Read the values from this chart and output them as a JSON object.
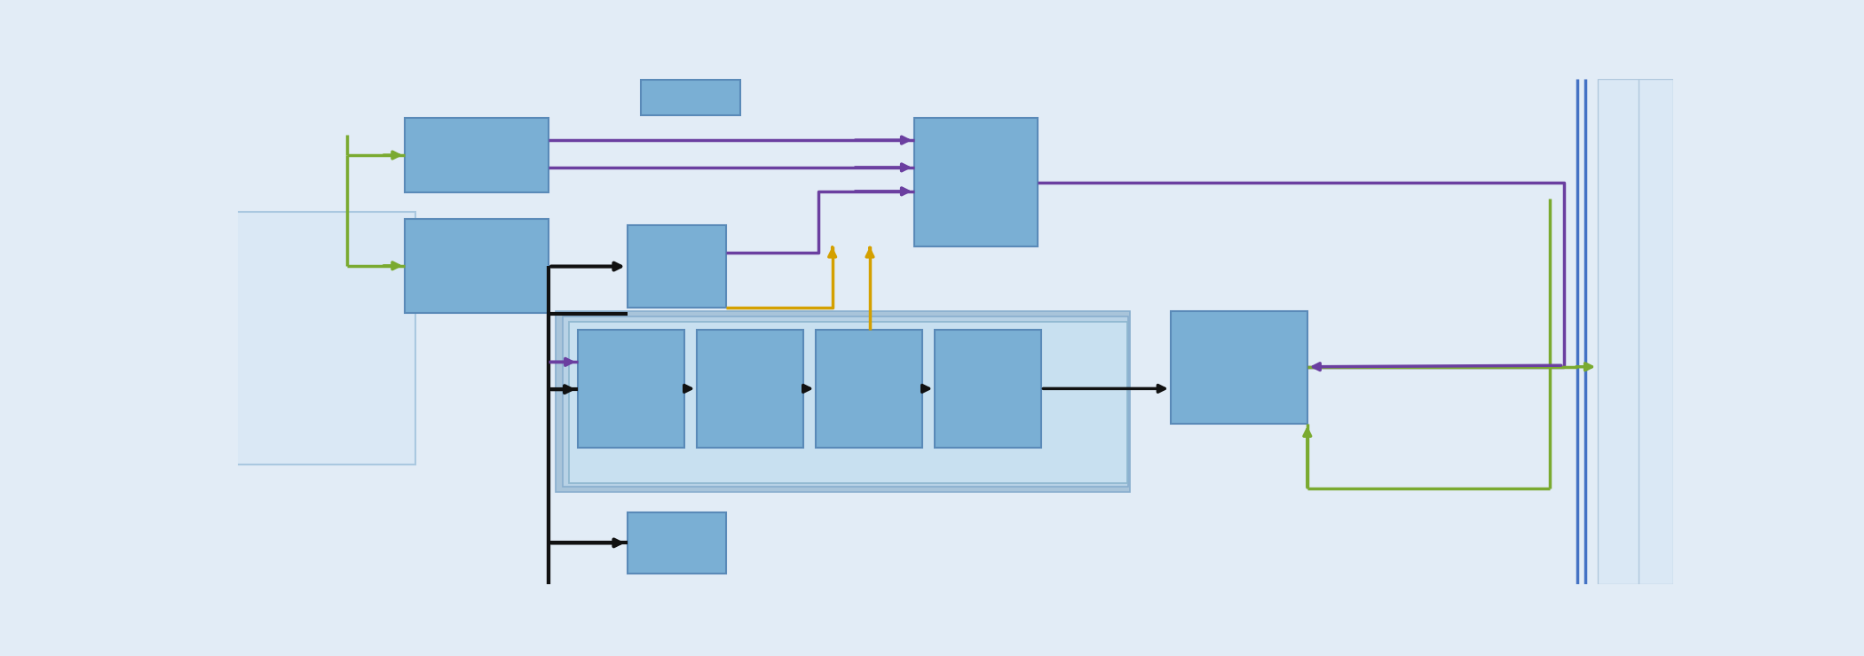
{
  "bg": "#e2ecf6",
  "box_blue": "#7aafd4",
  "box_edge": "#5a8ab8",
  "container_outer": "#b0ccdf",
  "container_mid": "#bdd8ec",
  "container_inner": "#c8e0f0",
  "panel_left": "#dae8f5",
  "panel_left_edge": "#aac8e0",
  "c_purple": "#6b3fa0",
  "c_gold": "#d4a000",
  "c_green": "#7aaa30",
  "c_black": "#111111",
  "c_blue_line": "#4472c4",
  "lw": 2.5
}
